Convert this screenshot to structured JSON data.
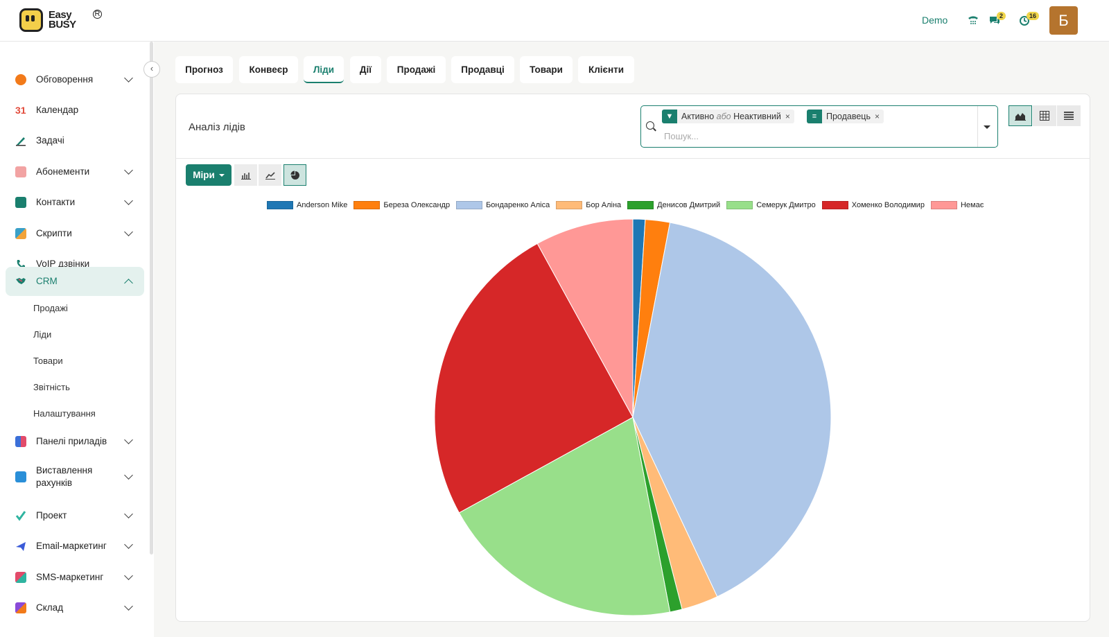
{
  "app": {
    "logo_line1": "Easy",
    "logo_line2": "BUSY",
    "logo_reg": "R"
  },
  "topbar": {
    "demo_label": "Demo",
    "messages_count": "2",
    "activities_count": "16",
    "avatar_letter": "Б"
  },
  "sidebar": {
    "items": [
      {
        "label": "Обговорення",
        "icon": "chat-bubble-icon",
        "color": "#f27a1a"
      },
      {
        "label": "Календар",
        "icon": "calendar-icon",
        "color": "#e24b3b"
      },
      {
        "label": "Задачі",
        "icon": "pencil-icon",
        "color": "#1a7f6e"
      },
      {
        "label": "Абонементи",
        "icon": "subscriptions-icon",
        "color": "#e86a6a"
      },
      {
        "label": "Контакти",
        "icon": "contacts-icon",
        "color": "#1a7f6e"
      },
      {
        "label": "Скрипти",
        "icon": "scripts-icon",
        "color": "#3aa0c8"
      },
      {
        "label": "VoIP дзвінки",
        "icon": "phone-icon",
        "color": "#1a7f6e"
      },
      {
        "label": "CRM",
        "icon": "handshake-icon",
        "color": "#1a7f6e"
      },
      {
        "label": "Панелі приладів",
        "icon": "dashboard-icon",
        "color": "#3b6fd8"
      },
      {
        "label": "Виставлення рахунків",
        "icon": "invoice-icon",
        "color": "#2a8fd8"
      },
      {
        "label": "Проект",
        "icon": "checkmark-icon",
        "color": "#2fb4a0"
      },
      {
        "label": "Email-маркетинг",
        "icon": "paper-plane-icon",
        "color": "#3b5bd8"
      },
      {
        "label": "SMS-маркетинг",
        "icon": "sms-icon",
        "color": "#e24b6a"
      },
      {
        "label": "Склад",
        "icon": "box-icon",
        "color": "#8a4bd8"
      }
    ],
    "crm_subitems": [
      "Продажі",
      "Ліди",
      "Товари",
      "Звітність",
      "Налаштування"
    ]
  },
  "tabs": [
    "Прогноз",
    "Конвеєр",
    "Ліди",
    "Дії",
    "Продажі",
    "Продавці",
    "Товари",
    "Клієнти"
  ],
  "active_tab": "Ліди",
  "card": {
    "title": "Аналіз лідів"
  },
  "search": {
    "facet1_a": "Активно",
    "facet1_or": "або",
    "facet1_b": "Неактивний",
    "facet2": "Продавець",
    "placeholder": "Пошук..."
  },
  "toolbar": {
    "measures_label": "Міри"
  },
  "chart_data": {
    "type": "pie",
    "labels": [
      "Anderson Mike",
      "Береза Олександр",
      "Бондаренко Аліса",
      "Бор Аліна",
      "Денисов Дмитрий",
      "Семерук Дмитро",
      "Хоменко Володимир",
      "Немає"
    ],
    "values": [
      1,
      2,
      40,
      3,
      1,
      20,
      25,
      8
    ],
    "colors": [
      "#1f77b4",
      "#ff7f0e",
      "#aec7e8",
      "#ffbb78",
      "#2ca02c",
      "#98df8a",
      "#d62728",
      "#ff9896"
    ],
    "legend_position": "top"
  }
}
